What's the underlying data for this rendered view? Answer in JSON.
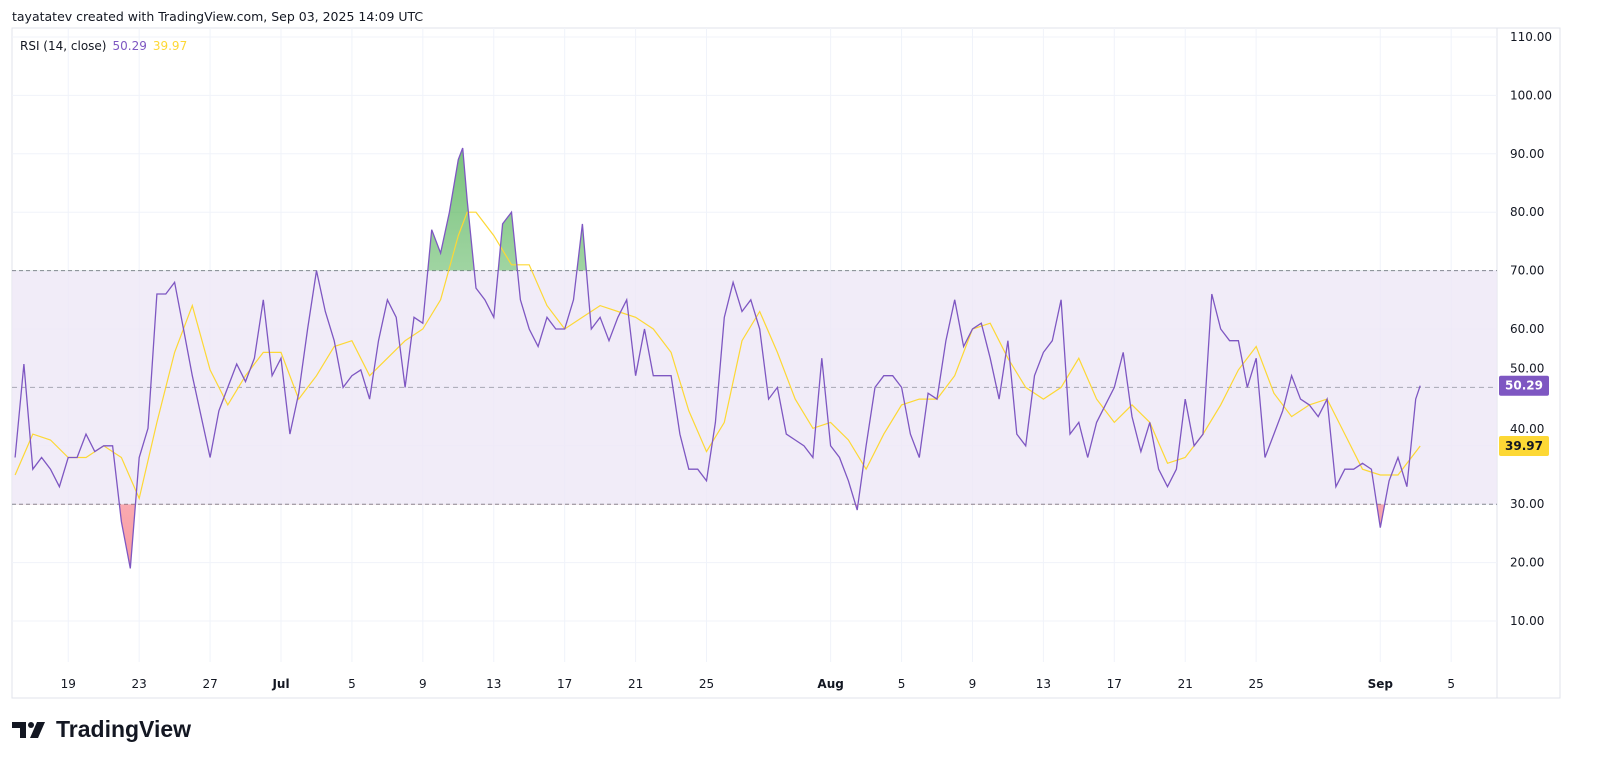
{
  "header": {
    "attribution": "tayatatev created with TradingView.com, Sep 03, 2025 14:09 UTC"
  },
  "legend": {
    "indicator": "RSI (14, close)",
    "rsi_value": "50.29",
    "ma_value": "39.97"
  },
  "logo": {
    "text": "TradingView"
  },
  "colors": {
    "rsi": "#7e57c2",
    "ma": "#fdd835",
    "band": "#ede7f6",
    "overbought_fill": "#4caf50",
    "oversold_fill": "#f23645",
    "grid": "#f0f3fa",
    "level_line": "#787b86"
  },
  "chart_data": {
    "type": "line",
    "title": "RSI (14, close)",
    "ylim": [
      0,
      115
    ],
    "y_ticks": [
      "110.00",
      "100.00",
      "90.00",
      "80.00",
      "70.00",
      "60.00",
      "50.00",
      "40.00",
      "30.00",
      "20.00",
      "10.00"
    ],
    "levels": {
      "upper": 70,
      "middle": 50,
      "lower": 30
    },
    "grid": true,
    "x_ticks": [
      {
        "label": "19",
        "date": "2025-06-19"
      },
      {
        "label": "23",
        "date": "2025-06-23"
      },
      {
        "label": "27",
        "date": "2025-06-27"
      },
      {
        "label": "Jul",
        "date": "2025-07-01",
        "bold": true
      },
      {
        "label": "5",
        "date": "2025-07-05"
      },
      {
        "label": "9",
        "date": "2025-07-09"
      },
      {
        "label": "13",
        "date": "2025-07-13"
      },
      {
        "label": "17",
        "date": "2025-07-17"
      },
      {
        "label": "21",
        "date": "2025-07-21"
      },
      {
        "label": "25",
        "date": "2025-07-25"
      },
      {
        "label": "Aug",
        "date": "2025-08-01",
        "bold": true
      },
      {
        "label": "5",
        "date": "2025-08-05"
      },
      {
        "label": "9",
        "date": "2025-08-09"
      },
      {
        "label": "13",
        "date": "2025-08-13"
      },
      {
        "label": "17",
        "date": "2025-08-17"
      },
      {
        "label": "21",
        "date": "2025-08-21"
      },
      {
        "label": "25",
        "date": "2025-08-25"
      },
      {
        "label": "Sep",
        "date": "2025-09-01",
        "bold": true
      },
      {
        "label": "5",
        "date": "2025-09-05"
      }
    ],
    "last_values": {
      "rsi": "50.29",
      "ma": "39.97"
    },
    "series": [
      {
        "key": "rsi",
        "color": "#7e57c2",
        "points": [
          [
            "2025-06-16T00:00",
            38
          ],
          [
            "2025-06-16T12:00",
            54
          ],
          [
            "2025-06-17T00:00",
            36
          ],
          [
            "2025-06-17T12:00",
            38
          ],
          [
            "2025-06-18T00:00",
            36
          ],
          [
            "2025-06-18T12:00",
            33
          ],
          [
            "2025-06-19T00:00",
            38
          ],
          [
            "2025-06-19T12:00",
            38
          ],
          [
            "2025-06-20T00:00",
            42
          ],
          [
            "2025-06-20T12:00",
            39
          ],
          [
            "2025-06-21T00:00",
            40
          ],
          [
            "2025-06-21T12:00",
            40
          ],
          [
            "2025-06-22T00:00",
            27
          ],
          [
            "2025-06-22T12:00",
            19
          ],
          [
            "2025-06-23T00:00",
            38
          ],
          [
            "2025-06-23T12:00",
            43
          ],
          [
            "2025-06-24T00:00",
            66
          ],
          [
            "2025-06-24T12:00",
            66
          ],
          [
            "2025-06-25T00:00",
            68
          ],
          [
            "2025-06-25T12:00",
            60
          ],
          [
            "2025-06-26T00:00",
            52
          ],
          [
            "2025-06-26T12:00",
            45
          ],
          [
            "2025-06-27T00:00",
            38
          ],
          [
            "2025-06-27T12:00",
            46
          ],
          [
            "2025-06-28T00:00",
            50
          ],
          [
            "2025-06-28T12:00",
            54
          ],
          [
            "2025-06-29T00:00",
            51
          ],
          [
            "2025-06-29T12:00",
            55
          ],
          [
            "2025-06-30T00:00",
            65
          ],
          [
            "2025-06-30T12:00",
            52
          ],
          [
            "2025-07-01T00:00",
            55
          ],
          [
            "2025-07-01T12:00",
            42
          ],
          [
            "2025-07-02T00:00",
            49
          ],
          [
            "2025-07-02T12:00",
            60
          ],
          [
            "2025-07-03T00:00",
            70
          ],
          [
            "2025-07-03T12:00",
            63
          ],
          [
            "2025-07-04T00:00",
            58
          ],
          [
            "2025-07-04T12:00",
            50
          ],
          [
            "2025-07-05T00:00",
            52
          ],
          [
            "2025-07-05T12:00",
            53
          ],
          [
            "2025-07-06T00:00",
            48
          ],
          [
            "2025-07-06T12:00",
            58
          ],
          [
            "2025-07-07T00:00",
            65
          ],
          [
            "2025-07-07T12:00",
            62
          ],
          [
            "2025-07-08T00:00",
            50
          ],
          [
            "2025-07-08T12:00",
            62
          ],
          [
            "2025-07-09T00:00",
            61
          ],
          [
            "2025-07-09T12:00",
            77
          ],
          [
            "2025-07-10T00:00",
            73
          ],
          [
            "2025-07-10T12:00",
            80
          ],
          [
            "2025-07-11T00:00",
            89
          ],
          [
            "2025-07-11T06:00",
            91
          ],
          [
            "2025-07-11T12:00",
            82
          ],
          [
            "2025-07-12T00:00",
            67
          ],
          [
            "2025-07-12T12:00",
            65
          ],
          [
            "2025-07-13T00:00",
            62
          ],
          [
            "2025-07-13T12:00",
            78
          ],
          [
            "2025-07-14T00:00",
            80
          ],
          [
            "2025-07-14T12:00",
            65
          ],
          [
            "2025-07-15T00:00",
            60
          ],
          [
            "2025-07-15T12:00",
            57
          ],
          [
            "2025-07-16T00:00",
            62
          ],
          [
            "2025-07-16T12:00",
            60
          ],
          [
            "2025-07-17T00:00",
            60
          ],
          [
            "2025-07-17T12:00",
            65
          ],
          [
            "2025-07-18T00:00",
            78
          ],
          [
            "2025-07-18T12:00",
            60
          ],
          [
            "2025-07-19T00:00",
            62
          ],
          [
            "2025-07-19T12:00",
            58
          ],
          [
            "2025-07-20T00:00",
            62
          ],
          [
            "2025-07-20T12:00",
            65
          ],
          [
            "2025-07-21T00:00",
            52
          ],
          [
            "2025-07-21T12:00",
            60
          ],
          [
            "2025-07-22T00:00",
            52
          ],
          [
            "2025-07-22T12:00",
            52
          ],
          [
            "2025-07-23T00:00",
            52
          ],
          [
            "2025-07-23T12:00",
            42
          ],
          [
            "2025-07-24T00:00",
            36
          ],
          [
            "2025-07-24T12:00",
            36
          ],
          [
            "2025-07-25T00:00",
            34
          ],
          [
            "2025-07-25T12:00",
            44
          ],
          [
            "2025-07-26T00:00",
            62
          ],
          [
            "2025-07-26T12:00",
            68
          ],
          [
            "2025-07-27T00:00",
            63
          ],
          [
            "2025-07-27T12:00",
            65
          ],
          [
            "2025-07-28T00:00",
            60
          ],
          [
            "2025-07-28T12:00",
            48
          ],
          [
            "2025-07-29T00:00",
            50
          ],
          [
            "2025-07-29T12:00",
            42
          ],
          [
            "2025-07-30T00:00",
            41
          ],
          [
            "2025-07-30T12:00",
            40
          ],
          [
            "2025-07-31T00:00",
            38
          ],
          [
            "2025-07-31T12:00",
            55
          ],
          [
            "2025-08-01T00:00",
            40
          ],
          [
            "2025-08-01T12:00",
            38
          ],
          [
            "2025-08-02T00:00",
            34
          ],
          [
            "2025-08-02T12:00",
            29
          ],
          [
            "2025-08-03T00:00",
            40
          ],
          [
            "2025-08-03T12:00",
            50
          ],
          [
            "2025-08-04T00:00",
            52
          ],
          [
            "2025-08-04T12:00",
            52
          ],
          [
            "2025-08-05T00:00",
            50
          ],
          [
            "2025-08-05T12:00",
            42
          ],
          [
            "2025-08-06T00:00",
            38
          ],
          [
            "2025-08-06T12:00",
            49
          ],
          [
            "2025-08-07T00:00",
            48
          ],
          [
            "2025-08-07T12:00",
            58
          ],
          [
            "2025-08-08T00:00",
            65
          ],
          [
            "2025-08-08T12:00",
            57
          ],
          [
            "2025-08-09T00:00",
            60
          ],
          [
            "2025-08-09T12:00",
            61
          ],
          [
            "2025-08-10T00:00",
            55
          ],
          [
            "2025-08-10T12:00",
            48
          ],
          [
            "2025-08-11T00:00",
            58
          ],
          [
            "2025-08-11T12:00",
            42
          ],
          [
            "2025-08-12T00:00",
            40
          ],
          [
            "2025-08-12T12:00",
            52
          ],
          [
            "2025-08-13T00:00",
            56
          ],
          [
            "2025-08-13T12:00",
            58
          ],
          [
            "2025-08-14T00:00",
            65
          ],
          [
            "2025-08-14T12:00",
            42
          ],
          [
            "2025-08-15T00:00",
            44
          ],
          [
            "2025-08-15T12:00",
            38
          ],
          [
            "2025-08-16T00:00",
            44
          ],
          [
            "2025-08-16T12:00",
            47
          ],
          [
            "2025-08-17T00:00",
            50
          ],
          [
            "2025-08-17T12:00",
            56
          ],
          [
            "2025-08-18T00:00",
            45
          ],
          [
            "2025-08-18T12:00",
            39
          ],
          [
            "2025-08-19T00:00",
            44
          ],
          [
            "2025-08-19T12:00",
            36
          ],
          [
            "2025-08-20T00:00",
            33
          ],
          [
            "2025-08-20T12:00",
            36
          ],
          [
            "2025-08-21T00:00",
            48
          ],
          [
            "2025-08-21T12:00",
            40
          ],
          [
            "2025-08-22T00:00",
            42
          ],
          [
            "2025-08-22T12:00",
            66
          ],
          [
            "2025-08-23T00:00",
            60
          ],
          [
            "2025-08-23T12:00",
            58
          ],
          [
            "2025-08-24T00:00",
            58
          ],
          [
            "2025-08-24T12:00",
            50
          ],
          [
            "2025-08-25T00:00",
            55
          ],
          [
            "2025-08-25T12:00",
            38
          ],
          [
            "2025-08-26T00:00",
            42
          ],
          [
            "2025-08-26T12:00",
            46
          ],
          [
            "2025-08-27T00:00",
            52
          ],
          [
            "2025-08-27T12:00",
            48
          ],
          [
            "2025-08-28T00:00",
            47
          ],
          [
            "2025-08-28T12:00",
            45
          ],
          [
            "2025-08-29T00:00",
            48
          ],
          [
            "2025-08-29T12:00",
            33
          ],
          [
            "2025-08-30T00:00",
            36
          ],
          [
            "2025-08-30T12:00",
            36
          ],
          [
            "2025-08-31T00:00",
            37
          ],
          [
            "2025-08-31T12:00",
            36
          ],
          [
            "2025-09-01T00:00",
            26
          ],
          [
            "2025-09-01T12:00",
            34
          ],
          [
            "2025-09-02T00:00",
            38
          ],
          [
            "2025-09-02T12:00",
            33
          ],
          [
            "2025-09-03T00:00",
            48
          ],
          [
            "2025-09-03T06:00",
            50.29
          ]
        ]
      },
      {
        "key": "ma",
        "color": "#fdd835",
        "points": [
          [
            "2025-06-16T00:00",
            35
          ],
          [
            "2025-06-17T00:00",
            42
          ],
          [
            "2025-06-18T00:00",
            41
          ],
          [
            "2025-06-19T00:00",
            38
          ],
          [
            "2025-06-20T00:00",
            38
          ],
          [
            "2025-06-21T00:00",
            40
          ],
          [
            "2025-06-22T00:00",
            38
          ],
          [
            "2025-06-23T00:00",
            31
          ],
          [
            "2025-06-24T00:00",
            44
          ],
          [
            "2025-06-25T00:00",
            56
          ],
          [
            "2025-06-26T00:00",
            64
          ],
          [
            "2025-06-27T00:00",
            53
          ],
          [
            "2025-06-28T00:00",
            47
          ],
          [
            "2025-06-29T00:00",
            52
          ],
          [
            "2025-06-30T00:00",
            56
          ],
          [
            "2025-07-01T00:00",
            56
          ],
          [
            "2025-07-02T00:00",
            48
          ],
          [
            "2025-07-03T00:00",
            52
          ],
          [
            "2025-07-04T00:00",
            57
          ],
          [
            "2025-07-05T00:00",
            58
          ],
          [
            "2025-07-06T00:00",
            52
          ],
          [
            "2025-07-07T00:00",
            55
          ],
          [
            "2025-07-08T00:00",
            58
          ],
          [
            "2025-07-09T00:00",
            60
          ],
          [
            "2025-07-10T00:00",
            65
          ],
          [
            "2025-07-11T00:00",
            76
          ],
          [
            "2025-07-11T12:00",
            80
          ],
          [
            "2025-07-12T00:00",
            80
          ],
          [
            "2025-07-13T00:00",
            76
          ],
          [
            "2025-07-14T00:00",
            71
          ],
          [
            "2025-07-15T00:00",
            71
          ],
          [
            "2025-07-16T00:00",
            64
          ],
          [
            "2025-07-17T00:00",
            60
          ],
          [
            "2025-07-18T00:00",
            62
          ],
          [
            "2025-07-19T00:00",
            64
          ],
          [
            "2025-07-20T00:00",
            63
          ],
          [
            "2025-07-21T00:00",
            62
          ],
          [
            "2025-07-22T00:00",
            60
          ],
          [
            "2025-07-23T00:00",
            56
          ],
          [
            "2025-07-24T00:00",
            46
          ],
          [
            "2025-07-25T00:00",
            39
          ],
          [
            "2025-07-26T00:00",
            44
          ],
          [
            "2025-07-27T00:00",
            58
          ],
          [
            "2025-07-28T00:00",
            63
          ],
          [
            "2025-07-29T00:00",
            56
          ],
          [
            "2025-07-30T00:00",
            48
          ],
          [
            "2025-07-31T00:00",
            43
          ],
          [
            "2025-08-01T00:00",
            44
          ],
          [
            "2025-08-02T00:00",
            41
          ],
          [
            "2025-08-03T00:00",
            36
          ],
          [
            "2025-08-04T00:00",
            42
          ],
          [
            "2025-08-05T00:00",
            47
          ],
          [
            "2025-08-06T00:00",
            48
          ],
          [
            "2025-08-07T00:00",
            48
          ],
          [
            "2025-08-08T00:00",
            52
          ],
          [
            "2025-08-09T00:00",
            60
          ],
          [
            "2025-08-10T00:00",
            61
          ],
          [
            "2025-08-11T00:00",
            55
          ],
          [
            "2025-08-12T00:00",
            50
          ],
          [
            "2025-08-13T00:00",
            48
          ],
          [
            "2025-08-14T00:00",
            50
          ],
          [
            "2025-08-15T00:00",
            55
          ],
          [
            "2025-08-16T00:00",
            48
          ],
          [
            "2025-08-17T00:00",
            44
          ],
          [
            "2025-08-18T00:00",
            47
          ],
          [
            "2025-08-19T00:00",
            44
          ],
          [
            "2025-08-20T00:00",
            37
          ],
          [
            "2025-08-21T00:00",
            38
          ],
          [
            "2025-08-22T00:00",
            42
          ],
          [
            "2025-08-23T00:00",
            47
          ],
          [
            "2025-08-24T00:00",
            53
          ],
          [
            "2025-08-25T00:00",
            57
          ],
          [
            "2025-08-26T00:00",
            49
          ],
          [
            "2025-08-27T00:00",
            45
          ],
          [
            "2025-08-28T00:00",
            47
          ],
          [
            "2025-08-29T00:00",
            48
          ],
          [
            "2025-08-30T00:00",
            42
          ],
          [
            "2025-08-31T00:00",
            36
          ],
          [
            "2025-09-01T00:00",
            35
          ],
          [
            "2025-09-02T00:00",
            35
          ],
          [
            "2025-09-03T06:00",
            39.97
          ]
        ]
      }
    ]
  }
}
